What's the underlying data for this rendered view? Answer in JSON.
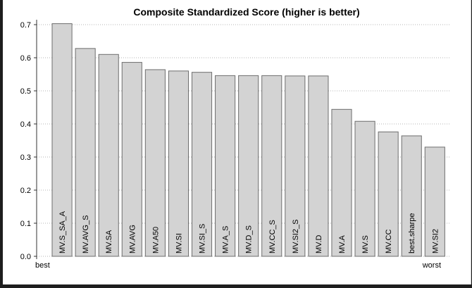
{
  "chart_data": {
    "type": "bar",
    "title": "Composite Standardized Score (higher is better)",
    "categories": [
      "MV.S_SA_A",
      "MV.AVG_S",
      "MV.SA",
      "MV.AVG",
      "MV.A50",
      "MV.SI",
      "MV.SI_S",
      "MV.A_S",
      "MV.D_S",
      "MV.CC_S",
      "MV.SI2_S",
      "MV.D",
      "MV.A",
      "MV.S",
      "MV.CC",
      "best.sharpe",
      "MV.SI2"
    ],
    "values": [
      0.703,
      0.628,
      0.61,
      0.586,
      0.564,
      0.56,
      0.556,
      0.546,
      0.546,
      0.546,
      0.545,
      0.545,
      0.444,
      0.408,
      0.376,
      0.364,
      0.33
    ],
    "ylim": [
      0,
      0.7
    ],
    "yticks": [
      0.0,
      0.1,
      0.2,
      0.3,
      0.4,
      0.5,
      0.6,
      0.7
    ],
    "xlabel_left": "best",
    "xlabel_right": "worst",
    "grid": true,
    "bar_color": "#d3d3d3",
    "bar_border": "#6e6e6e"
  }
}
